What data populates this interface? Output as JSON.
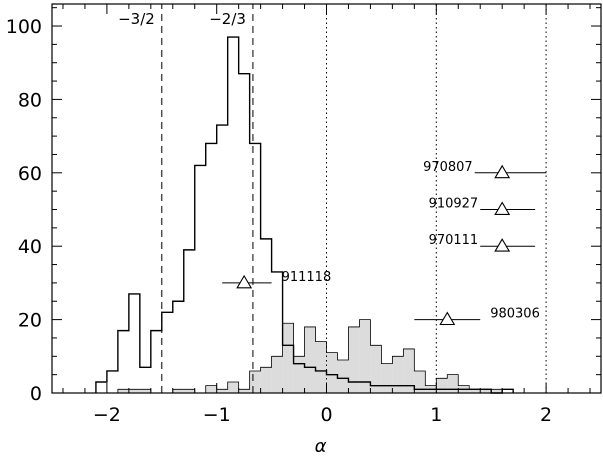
{
  "chart_data": {
    "type": "histogram",
    "title": "",
    "xlabel": "α",
    "ylabel": "",
    "xlim": [
      -2.5,
      2.5
    ],
    "ylim": [
      0,
      106
    ],
    "x_ticks": [
      {
        "value": -2,
        "label": "−2"
      },
      {
        "value": -1,
        "label": "−1"
      },
      {
        "value": 0,
        "label": "0"
      },
      {
        "value": 1,
        "label": "1"
      },
      {
        "value": 2,
        "label": "2"
      }
    ],
    "y_ticks": [
      {
        "value": 0,
        "label": "0"
      },
      {
        "value": 20,
        "label": "20"
      },
      {
        "value": 40,
        "label": "40"
      },
      {
        "value": 60,
        "label": "60"
      },
      {
        "value": 80,
        "label": "80"
      },
      {
        "value": 100,
        "label": "100"
      }
    ],
    "bin_width": 0.1,
    "series": [
      {
        "style": "outline",
        "bin_starts": [
          -2.1,
          -2.0,
          -1.9,
          -1.8,
          -1.7,
          -1.6,
          -1.5,
          -1.4,
          -1.3,
          -1.2,
          -1.1,
          -1.0,
          -0.9,
          -0.8,
          -0.7,
          -0.6,
          -0.5,
          -0.4,
          -0.3,
          -0.2,
          -0.1,
          0.0,
          0.1,
          0.2,
          0.3,
          0.4,
          0.5,
          0.6,
          0.7,
          0.8,
          0.9,
          1.0,
          1.1,
          1.2,
          1.3,
          1.4,
          1.5,
          1.6
        ],
        "counts": [
          3,
          6,
          17,
          27,
          7,
          17,
          22,
          25,
          39,
          62,
          68,
          73,
          97,
          87,
          68,
          42,
          33,
          13,
          8,
          7,
          6,
          5,
          4,
          3,
          3,
          2,
          2,
          2,
          2,
          1,
          1,
          1,
          1,
          1,
          1,
          1,
          0,
          1
        ]
      },
      {
        "style": "filled",
        "color": "#dcdcdc",
        "bin_starts": [
          -1.9,
          -1.8,
          -1.7,
          -1.6,
          -1.5,
          -1.4,
          -1.3,
          -1.2,
          -1.1,
          -1.0,
          -0.9,
          -0.8,
          -0.7,
          -0.6,
          -0.5,
          -0.4,
          -0.3,
          -0.2,
          -0.1,
          0.0,
          0.1,
          0.2,
          0.3,
          0.4,
          0.5,
          0.6,
          0.7,
          0.8,
          0.9,
          1.0,
          1.1,
          1.2,
          1.3,
          1.4,
          1.5
        ],
        "counts": [
          1,
          1,
          1,
          0,
          0,
          1,
          1,
          0,
          2,
          1,
          3,
          1,
          6,
          7,
          10,
          19,
          10,
          18,
          14,
          11,
          9,
          18,
          20,
          13,
          8,
          10,
          12,
          6,
          2,
          4,
          5,
          2,
          1,
          1,
          1
        ]
      }
    ],
    "vertical_lines": [
      {
        "x": -1.5,
        "style": "dashed",
        "label": "−3/2"
      },
      {
        "x": -0.67,
        "style": "dashed",
        "label": "−2/3"
      },
      {
        "x": 0,
        "style": "dotted",
        "label": ""
      },
      {
        "x": 1,
        "style": "dotted",
        "label": ""
      },
      {
        "x": 2,
        "style": "dotted",
        "label": ""
      }
    ],
    "points": [
      {
        "label": "970807",
        "x": 1.6,
        "y": 60,
        "xerr_low": 1.35,
        "xerr_high": 2.0
      },
      {
        "label": "910927",
        "x": 1.6,
        "y": 50,
        "xerr_low": 1.4,
        "xerr_high": 1.9
      },
      {
        "label": "970111",
        "x": 1.6,
        "y": 40,
        "xerr_low": 1.4,
        "xerr_high": 1.9
      },
      {
        "label": "911118",
        "x": -0.75,
        "y": 30,
        "xerr_low": -0.95,
        "xerr_high": -0.5
      },
      {
        "label": "980306",
        "x": 1.1,
        "y": 20,
        "xerr_low": 0.8,
        "xerr_high": 1.4
      }
    ]
  }
}
